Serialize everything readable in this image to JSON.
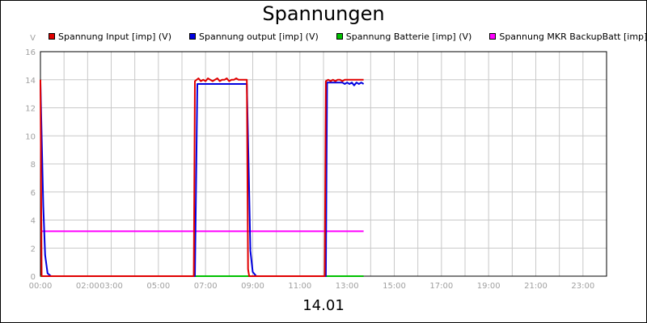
{
  "chart_data": {
    "type": "line",
    "title": "Spannungen",
    "xlabel": "14.01",
    "ylabel": "V",
    "xlim": [
      0,
      24
    ],
    "ylim": [
      0,
      16
    ],
    "y_ticks": [
      0,
      2,
      4,
      6,
      8,
      10,
      12,
      14,
      16
    ],
    "x_tick_labels": [
      "00:00",
      "02:00",
      "03:00",
      "05:00",
      "07:00",
      "09:00",
      "11:00",
      "13:00",
      "15:00",
      "17:00",
      "19:00",
      "21:00",
      "23:00"
    ],
    "x_tick_positions": [
      0,
      2,
      3,
      5,
      7,
      9,
      11,
      13,
      15,
      17,
      19,
      21,
      23
    ],
    "grid": true,
    "legend_position": "top",
    "series": [
      {
        "name": "Spannung Input [imp] (V)",
        "color": "#e00000",
        "x": [
          0.0,
          0.05,
          0.1,
          6.5,
          6.55,
          6.7,
          6.8,
          6.9,
          7.0,
          7.1,
          7.2,
          7.3,
          7.4,
          7.5,
          7.6,
          7.7,
          7.8,
          7.9,
          8.0,
          8.1,
          8.2,
          8.3,
          8.4,
          8.5,
          8.6,
          8.75,
          8.8,
          8.85,
          12.05,
          12.1,
          12.2,
          12.3,
          12.4,
          12.5,
          12.6,
          12.7,
          12.8,
          12.9,
          13.0,
          13.1,
          13.2,
          13.3,
          13.7
        ],
        "y": [
          14.0,
          0.0,
          0.0,
          0.0,
          13.9,
          14.1,
          13.9,
          14.0,
          13.9,
          14.1,
          14.0,
          13.9,
          14.0,
          14.1,
          13.9,
          14.0,
          14.0,
          14.1,
          13.9,
          14.0,
          14.0,
          14.1,
          14.0,
          14.0,
          14.0,
          14.0,
          0.5,
          0.0,
          0.0,
          13.9,
          14.0,
          13.9,
          14.0,
          13.9,
          14.0,
          14.0,
          13.9,
          14.0,
          14.0,
          14.0,
          14.0,
          14.0,
          14.0
        ]
      },
      {
        "name": "Spannung output [imp] (V)",
        "color": "#0000e0",
        "x": [
          0.0,
          0.05,
          0.12,
          0.2,
          0.3,
          0.45,
          6.55,
          6.65,
          8.75,
          8.85,
          8.9,
          9.0,
          9.15,
          12.1,
          12.15,
          12.8,
          12.9,
          13.0,
          13.1,
          13.2,
          13.3,
          13.4,
          13.5,
          13.6,
          13.7
        ],
        "y": [
          13.8,
          10.0,
          5.0,
          1.5,
          0.2,
          0.0,
          0.0,
          13.7,
          13.7,
          6.0,
          1.8,
          0.3,
          0.0,
          0.0,
          13.8,
          13.8,
          13.7,
          13.8,
          13.7,
          13.8,
          13.6,
          13.8,
          13.7,
          13.8,
          13.7
        ]
      },
      {
        "name": "Spannung Batterie [imp] (V)",
        "color": "#00c000",
        "x": [
          0.0,
          13.7
        ],
        "y": [
          0.0,
          0.0
        ]
      },
      {
        "name": "Spannung MKR BackupBatt [imp] (V)",
        "color": "#ff00ff",
        "x": [
          0.0,
          13.7
        ],
        "y": [
          3.2,
          3.2
        ]
      }
    ]
  }
}
